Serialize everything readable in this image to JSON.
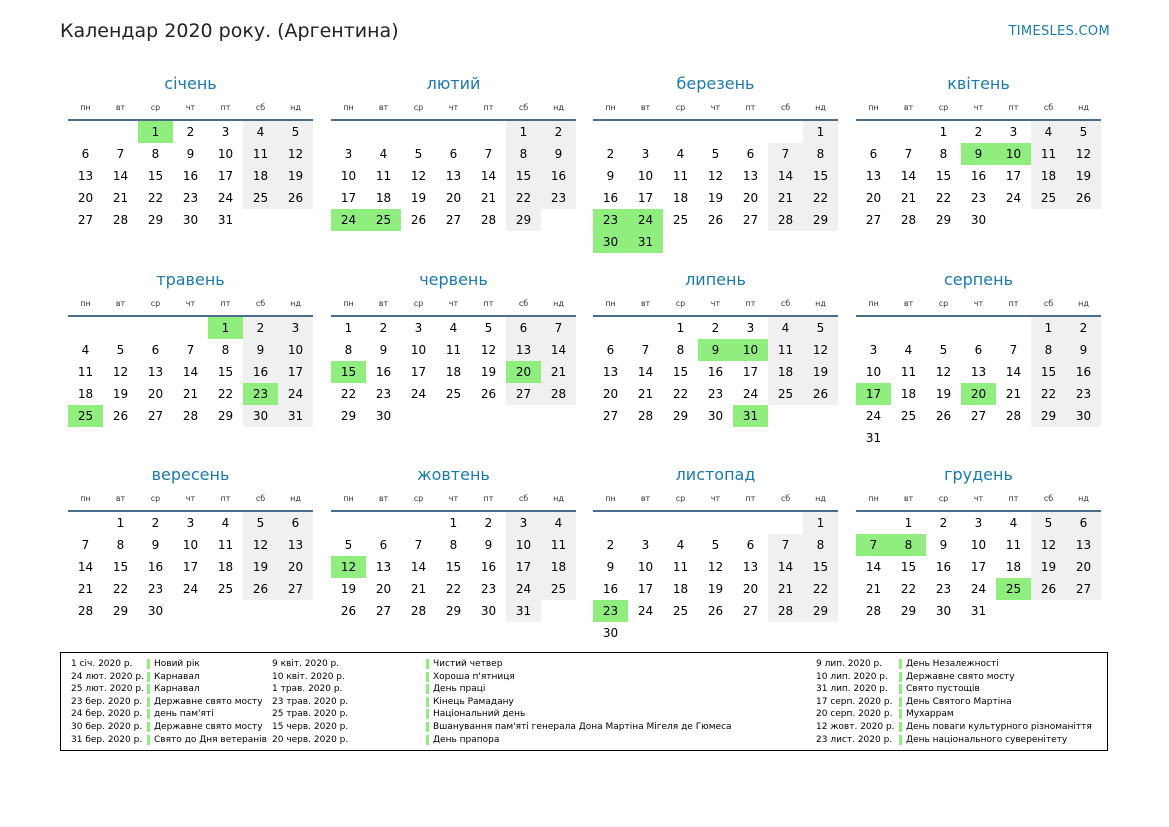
{
  "header": {
    "title": "Календар 2020 року. (Аргентина)",
    "brand": "TIMESLES.COM"
  },
  "weekdays": [
    "пн",
    "вт",
    "ср",
    "чт",
    "пт",
    "сб",
    "нд"
  ],
  "months": [
    {
      "name": "січень",
      "offset": 2,
      "days": 31,
      "holidays": [
        1
      ]
    },
    {
      "name": "лютий",
      "offset": 5,
      "days": 29,
      "holidays": [
        24,
        25
      ]
    },
    {
      "name": "березень",
      "offset": 6,
      "days": 31,
      "holidays": [
        23,
        24,
        30,
        31
      ]
    },
    {
      "name": "квітень",
      "offset": 2,
      "days": 30,
      "holidays": [
        9,
        10
      ]
    },
    {
      "name": "травень",
      "offset": 4,
      "days": 31,
      "holidays": [
        1,
        23,
        25
      ]
    },
    {
      "name": "червень",
      "offset": 0,
      "days": 30,
      "holidays": [
        15,
        20
      ]
    },
    {
      "name": "липень",
      "offset": 2,
      "days": 31,
      "holidays": [
        9,
        10,
        31
      ]
    },
    {
      "name": "серпень",
      "offset": 5,
      "days": 31,
      "holidays": [
        17,
        20
      ]
    },
    {
      "name": "вересень",
      "offset": 1,
      "days": 30,
      "holidays": []
    },
    {
      "name": "жовтень",
      "offset": 3,
      "days": 31,
      "holidays": [
        12
      ]
    },
    {
      "name": "листопад",
      "offset": 6,
      "days": 30,
      "holidays": [
        23
      ]
    },
    {
      "name": "грудень",
      "offset": 1,
      "days": 31,
      "holidays": [
        7,
        8,
        25
      ]
    }
  ],
  "legend": {
    "columns": [
      [
        {
          "date": "1 січ. 2020 р.",
          "name": "Новий рік"
        },
        {
          "date": "24 лют. 2020 р.",
          "name": "Карнавал"
        },
        {
          "date": "25 лют. 2020 р.",
          "name": "Карнавал"
        },
        {
          "date": "23 бер. 2020 р.",
          "name": "Державне свято мосту"
        },
        {
          "date": "24 бер. 2020 р.",
          "name": "день пам'яті"
        },
        {
          "date": "30 бер. 2020 р.",
          "name": "Державне свято мосту"
        },
        {
          "date": "31 бер. 2020 р.",
          "name": "Свято до Дня ветеранів"
        }
      ],
      [
        {
          "date": "9 квіт. 2020 р.",
          "name": "Чистий четвер"
        },
        {
          "date": "10 квіт. 2020 р.",
          "name": "Хороша п'ятниця"
        },
        {
          "date": "1 трав. 2020 р.",
          "name": "День праці"
        },
        {
          "date": "23 трав. 2020 р.",
          "name": "Кінець Рамадану"
        },
        {
          "date": "25 трав. 2020 р.",
          "name": "Національний день"
        },
        {
          "date": "15 черв. 2020 р.",
          "name": "Вшанування пам'яті генерала Дона Мартіна Мігеля де Гюмеса"
        },
        {
          "date": "20 черв. 2020 р.",
          "name": "День прапора"
        }
      ],
      [
        {
          "date": "9 лип. 2020 р.",
          "name": "День Незалежності"
        },
        {
          "date": "10 лип. 2020 р.",
          "name": "Державне свято мосту"
        },
        {
          "date": "31 лип. 2020 р.",
          "name": "Свято пустощів"
        },
        {
          "date": "17 серп. 2020 р.",
          "name": "День Святого Мартіна"
        },
        {
          "date": "20 серп. 2020 р.",
          "name": "Мухаррам"
        },
        {
          "date": "12 жовт. 2020 р.",
          "name": "День поваги культурного різноманіття"
        },
        {
          "date": "23 лист. 2020 р.",
          "name": "День національного суверенітету"
        }
      ]
    ]
  }
}
